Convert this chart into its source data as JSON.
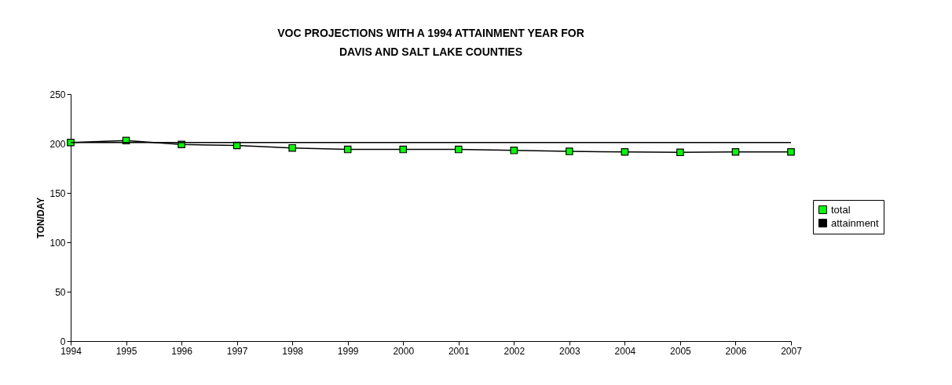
{
  "chart_data": {
    "type": "line",
    "title": [
      "VOC PROJECTIONS WITH A 1994 ATTAINMENT YEAR FOR",
      "DAVIS AND SALT LAKE COUNTIES"
    ],
    "ylabel": "TON/DAY",
    "categories": [
      "1994",
      "1995",
      "1996",
      "1997",
      "1998",
      "1999",
      "2000",
      "2001",
      "2002",
      "2003",
      "2004",
      "2005",
      "2006",
      "2007"
    ],
    "series": [
      {
        "name": "total",
        "color": "#00ff00",
        "marker": "square",
        "values": [
          201,
          203,
          199,
          198,
          195.5,
          194,
          194,
          194,
          193,
          192,
          191.5,
          191,
          191.5,
          191.5
        ]
      },
      {
        "name": "attainment",
        "color": "#000000",
        "marker": "none",
        "values": [
          201,
          201,
          201,
          201,
          201,
          201,
          201,
          201,
          201,
          201,
          201,
          201,
          201,
          201
        ]
      }
    ],
    "ylim": [
      0,
      250
    ],
    "yticks": [
      0,
      50,
      100,
      150,
      200,
      250
    ],
    "grid": false,
    "legend": "right"
  }
}
